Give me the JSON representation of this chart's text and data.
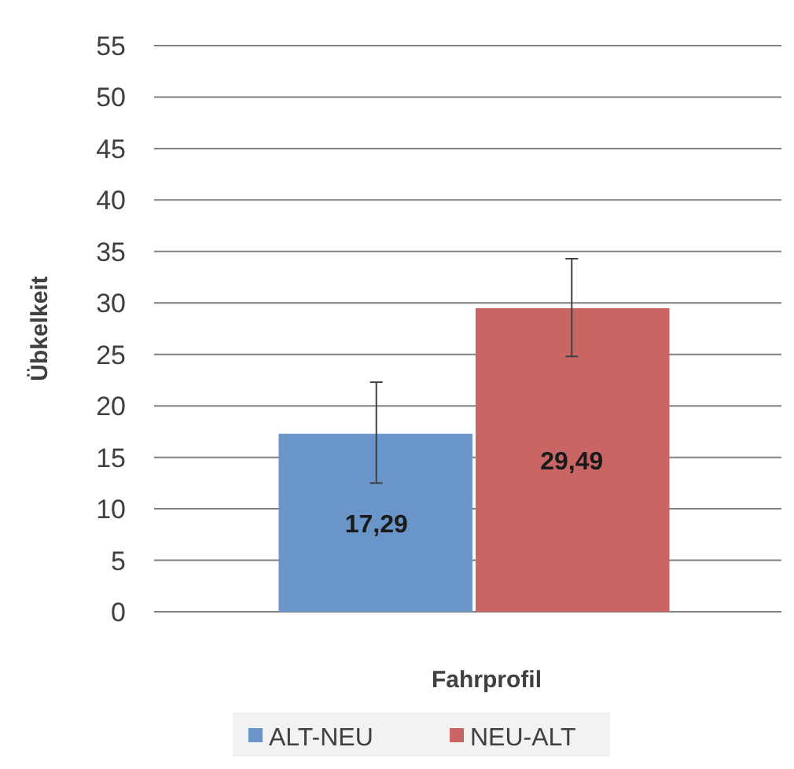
{
  "chart_data": {
    "type": "bar",
    "xlabel": "Fahrprofil",
    "ylabel": "Übkelkeit",
    "categories": [
      null
    ],
    "series": [
      {
        "name": "ALT-NEU",
        "color": "#6a95c8",
        "values": [
          17.29
        ],
        "errors": [
          [
            12.5,
            22.3
          ]
        ],
        "value_labels": [
          "17,29"
        ]
      },
      {
        "name": "NEU-ALT",
        "color": "#c96565",
        "values": [
          29.49
        ],
        "errors": [
          [
            24.8,
            34.3
          ]
        ],
        "value_labels": [
          "29,49"
        ]
      }
    ],
    "ylim": [
      0,
      55
    ],
    "yticks": [
      0,
      5,
      10,
      15,
      20,
      25,
      30,
      35,
      40,
      45,
      50,
      55
    ],
    "grid": "y",
    "legend": "bottom"
  }
}
